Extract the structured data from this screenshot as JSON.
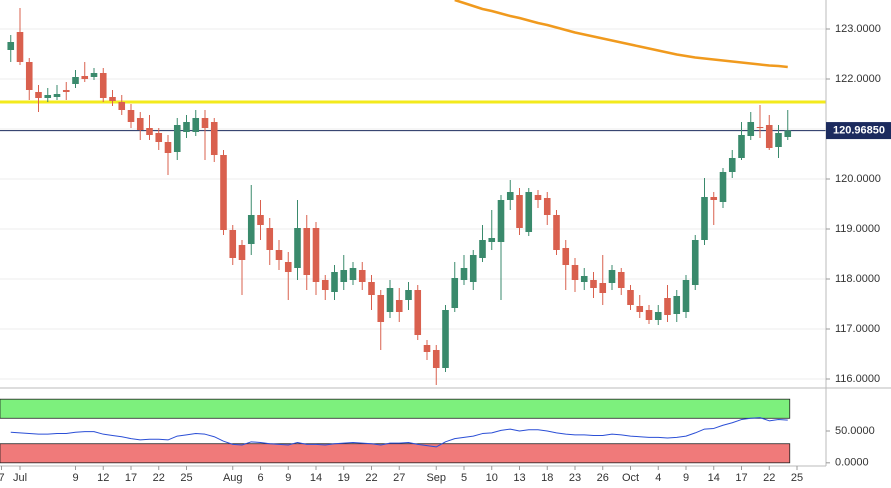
{
  "chart_data": {
    "type": "candlestick",
    "categories": [
      "7",
      null,
      "Jul",
      null,
      null,
      null,
      null,
      null,
      "9",
      null,
      null,
      "12",
      null,
      null,
      "17",
      null,
      null,
      "22",
      null,
      null,
      "25",
      null,
      null,
      null,
      null,
      "Aug",
      null,
      null,
      "6",
      null,
      null,
      "9",
      null,
      null,
      "14",
      null,
      null,
      "19",
      null,
      null,
      "22",
      null,
      null,
      "27",
      null,
      null,
      null,
      "Sep",
      null,
      null,
      "5",
      null,
      null,
      "10",
      null,
      null,
      "13",
      null,
      null,
      "18",
      null,
      null,
      "23",
      null,
      null,
      "26",
      null,
      null,
      "Oct",
      null,
      null,
      "4",
      null,
      null,
      "9",
      null,
      null,
      "14",
      null,
      null,
      "17",
      null,
      null,
      "22",
      null,
      null,
      "25"
    ],
    "open": [
      null,
      122.58,
      122.94,
      122.34,
      121.74,
      121.62,
      121.64,
      121.78,
      121.9,
      122.06,
      122.04,
      122.12,
      121.64,
      121.54,
      121.38,
      121.22,
      121.02,
      120.92,
      120.74,
      120.54,
      120.94,
      120.94,
      121.22,
      121.14,
      120.48,
      118.98,
      118.68,
      118.7,
      119.28,
      119.02,
      118.58,
      118.34,
      118.22,
      119.02,
      119.02,
      117.98,
      117.74,
      117.94,
      117.98,
      118.18,
      117.94,
      117.68,
      117.34,
      117.58,
      117.58,
      117.78,
      116.68,
      116.58,
      116.22,
      117.42,
      117.98,
      117.94,
      118.42,
      118.74,
      118.74,
      119.58,
      119.68,
      118.94,
      119.68,
      119.62,
      119.28,
      118.62,
      118.28,
      117.94,
      117.98,
      117.92,
      117.92,
      118.14,
      117.78,
      117.46,
      117.38,
      117.18,
      117.62,
      117.3,
      117.34,
      117.88,
      118.78,
      119.64,
      119.54,
      120.14,
      120.42,
      120.86,
      121.04,
      121.08,
      120.64,
      120.84,
      null
    ],
    "high": [
      null,
      122.88,
      123.42,
      122.42,
      121.88,
      121.82,
      121.88,
      121.94,
      122.18,
      122.34,
      122.22,
      122.22,
      121.78,
      121.68,
      121.5,
      121.34,
      121.28,
      121.02,
      120.88,
      121.22,
      121.28,
      121.38,
      121.38,
      121.22,
      120.58,
      119.08,
      118.78,
      119.88,
      119.58,
      119.22,
      118.78,
      118.54,
      119.58,
      119.28,
      119.14,
      118.08,
      118.28,
      118.48,
      118.34,
      118.34,
      118.08,
      117.78,
      117.98,
      117.82,
      117.94,
      117.88,
      116.78,
      116.68,
      117.48,
      118.34,
      118.48,
      118.58,
      119.08,
      119.38,
      119.68,
      119.98,
      119.82,
      119.82,
      119.78,
      119.74,
      119.38,
      118.78,
      118.42,
      118.22,
      118.14,
      118.48,
      118.28,
      118.22,
      117.88,
      117.68,
      117.48,
      117.48,
      117.88,
      117.78,
      118.08,
      118.88,
      120.02,
      119.74,
      120.22,
      120.58,
      121.14,
      121.34,
      121.48,
      121.28,
      121.08,
      121.38,
      null
    ],
    "low": [
      null,
      122.34,
      122.28,
      121.58,
      121.34,
      121.54,
      121.58,
      121.58,
      121.82,
      121.94,
      121.98,
      121.54,
      121.46,
      121.28,
      121.02,
      120.78,
      120.78,
      120.58,
      120.08,
      120.38,
      120.82,
      120.86,
      120.38,
      120.34,
      118.88,
      118.28,
      117.68,
      118.48,
      118.78,
      118.28,
      118.18,
      117.58,
      117.98,
      117.78,
      117.68,
      117.58,
      117.58,
      117.78,
      117.88,
      117.78,
      117.38,
      116.58,
      117.22,
      117.14,
      117.38,
      116.78,
      116.38,
      115.88,
      116.14,
      117.34,
      117.88,
      117.78,
      118.34,
      118.58,
      117.58,
      119.38,
      118.88,
      118.86,
      119.42,
      119.08,
      118.48,
      117.78,
      117.74,
      117.78,
      117.62,
      117.48,
      117.78,
      117.68,
      117.38,
      117.22,
      117.1,
      117.08,
      117.14,
      117.14,
      117.22,
      117.78,
      118.68,
      119.08,
      119.42,
      120.02,
      120.38,
      120.78,
      120.82,
      120.58,
      120.42,
      120.78,
      null
    ],
    "close": [
      null,
      122.74,
      122.34,
      121.78,
      121.62,
      121.68,
      121.7,
      121.74,
      122.04,
      122.0,
      122.12,
      121.62,
      121.56,
      121.38,
      121.14,
      120.98,
      120.88,
      120.74,
      120.52,
      121.08,
      121.14,
      121.22,
      121.02,
      120.48,
      118.98,
      118.42,
      118.38,
      119.28,
      119.08,
      118.58,
      118.38,
      118.14,
      119.02,
      118.08,
      117.94,
      117.78,
      118.14,
      118.18,
      118.22,
      117.94,
      117.68,
      117.14,
      117.82,
      117.34,
      117.78,
      116.88,
      116.54,
      116.22,
      117.38,
      118.02,
      118.22,
      118.48,
      118.78,
      118.82,
      119.58,
      119.74,
      119.02,
      119.74,
      119.58,
      119.28,
      118.58,
      118.28,
      117.98,
      118.06,
      117.82,
      117.72,
      118.18,
      117.82,
      117.48,
      117.34,
      117.18,
      117.34,
      117.28,
      117.66,
      117.98,
      118.78,
      119.64,
      119.58,
      120.14,
      120.42,
      120.88,
      121.14,
      121.02,
      120.62,
      120.92,
      120.97,
      null
    ],
    "color_up": "#3a8a6c",
    "color_down": "#d9604e",
    "ylim": [
      115.86,
      123.58
    ],
    "yticks": [
      {
        "value": 123,
        "label": "123.0000"
      },
      {
        "value": 122,
        "label": "122.0000"
      },
      {
        "value": 121,
        "label": "121.0000"
      },
      {
        "value": 120,
        "label": "120.0000"
      },
      {
        "value": 119,
        "label": "119.0000"
      },
      {
        "value": 118,
        "label": "118.0000"
      },
      {
        "value": 117,
        "label": "117.0000"
      },
      {
        "value": 116,
        "label": "116.0000"
      }
    ],
    "grid": true,
    "last_price": {
      "value": 120.9685,
      "label": "120.96850",
      "color": "#1c2b5e"
    },
    "level_line": {
      "value": 121.54,
      "color": "#f3ea1c"
    },
    "moving_average": {
      "color": "#f09a1e",
      "values": [
        null,
        null,
        null,
        null,
        null,
        null,
        null,
        null,
        null,
        null,
        null,
        null,
        null,
        null,
        null,
        null,
        null,
        null,
        null,
        null,
        null,
        null,
        null,
        null,
        null,
        null,
        null,
        null,
        null,
        null,
        null,
        null,
        null,
        null,
        null,
        null,
        null,
        null,
        null,
        null,
        null,
        null,
        null,
        null,
        null,
        null,
        null,
        null,
        null,
        123.58,
        123.52,
        123.46,
        123.4,
        123.36,
        123.31,
        123.26,
        123.22,
        123.17,
        123.12,
        123.08,
        123.03,
        122.98,
        122.93,
        122.89,
        122.85,
        122.81,
        122.77,
        122.73,
        122.69,
        122.65,
        122.61,
        122.57,
        122.53,
        122.49,
        122.46,
        122.43,
        122.41,
        122.39,
        122.37,
        122.35,
        122.33,
        122.31,
        122.29,
        122.27,
        122.26,
        122.24,
        null
      ]
    },
    "indicator": {
      "color": "#2b4fd6",
      "values": [
        null,
        48,
        47,
        46,
        45,
        45,
        46,
        46,
        48,
        49,
        49,
        45,
        43,
        41,
        38,
        36,
        37,
        37,
        36,
        42,
        44,
        46,
        45,
        41,
        34,
        29,
        28,
        33,
        32,
        30,
        29,
        28,
        32,
        29,
        29,
        28,
        30,
        31,
        32,
        31,
        30,
        28,
        31,
        31,
        32,
        29,
        27,
        25,
        33,
        38,
        40,
        42,
        46,
        47,
        51,
        53,
        50,
        52,
        52,
        50,
        47,
        45,
        44,
        44,
        43,
        43,
        45,
        44,
        42,
        41,
        40,
        40,
        39,
        40,
        42,
        47,
        53,
        54,
        59,
        63,
        68,
        70,
        71,
        66,
        68,
        67,
        null
      ],
      "ylim": [
        -5,
        105
      ],
      "yticks": [
        {
          "value": 50,
          "label": "50.0000"
        },
        {
          "value": 0,
          "label": "0.0000"
        }
      ],
      "bands": [
        {
          "from": 70,
          "to": 100,
          "color": "#7df07d"
        },
        {
          "from": 0,
          "to": 30,
          "color": "#f07a7a"
        }
      ]
    }
  }
}
